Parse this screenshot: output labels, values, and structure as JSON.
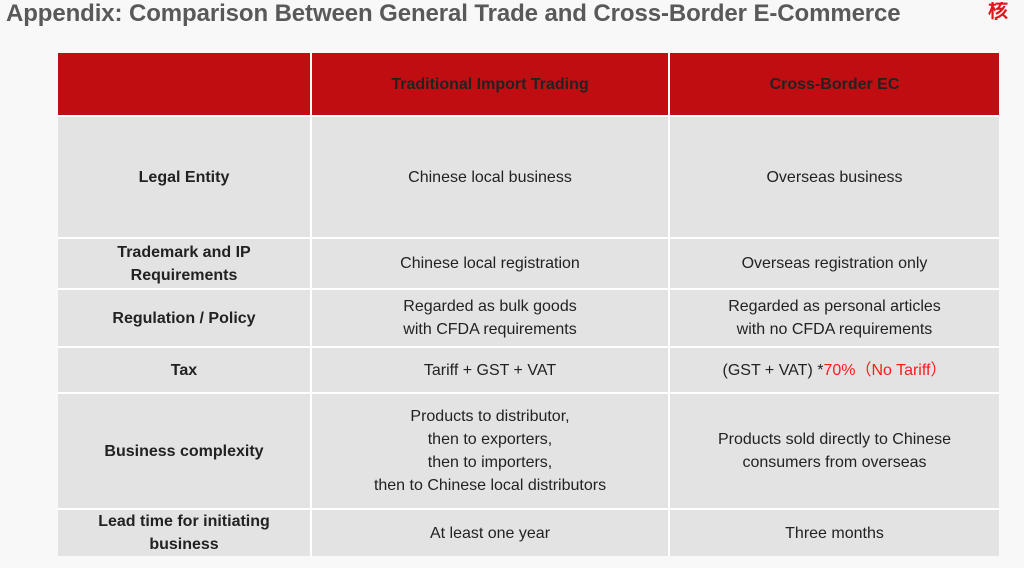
{
  "title": "Appendix: Comparison Between General Trade and Cross-Border E-Commerce",
  "corner_text": "核心",
  "table": {
    "columns": [
      "",
      "Traditional Import Trading",
      "Cross-Border EC"
    ],
    "rows": [
      {
        "label": "Legal Entity",
        "traditional": "Chinese local business",
        "cross_border": "Overseas business"
      },
      {
        "label_lines": [
          "Trademark and IP",
          "Requirements"
        ],
        "traditional": "Chinese local registration",
        "cross_border": "Overseas registration only"
      },
      {
        "label": "Regulation / Policy",
        "traditional_lines": [
          "Regarded as bulk goods",
          "with CFDA requirements"
        ],
        "cross_border_lines": [
          "Regarded as personal articles",
          "with no CFDA requirements"
        ]
      },
      {
        "label": "Tax",
        "traditional": "Tariff + GST + VAT",
        "cross_border_prefix": "(GST + VAT) *",
        "cross_border_highlight": "70%（No Tariff）"
      },
      {
        "label": "Business complexity",
        "traditional_lines": [
          "Products to distributor,",
          "then to exporters,",
          "then to importers,",
          "then to Chinese local distributors"
        ],
        "cross_border_lines": [
          "Products sold directly to Chinese",
          "consumers from overseas"
        ]
      },
      {
        "label_lines": [
          "Lead time for initiating",
          "business"
        ],
        "traditional": "At least one year",
        "cross_border": "Three months"
      }
    ]
  },
  "colors": {
    "header_bg": "#c00d12",
    "cell_bg": "#e3e3e3",
    "title_text": "#595959",
    "highlight": "#ff1a1a"
  }
}
